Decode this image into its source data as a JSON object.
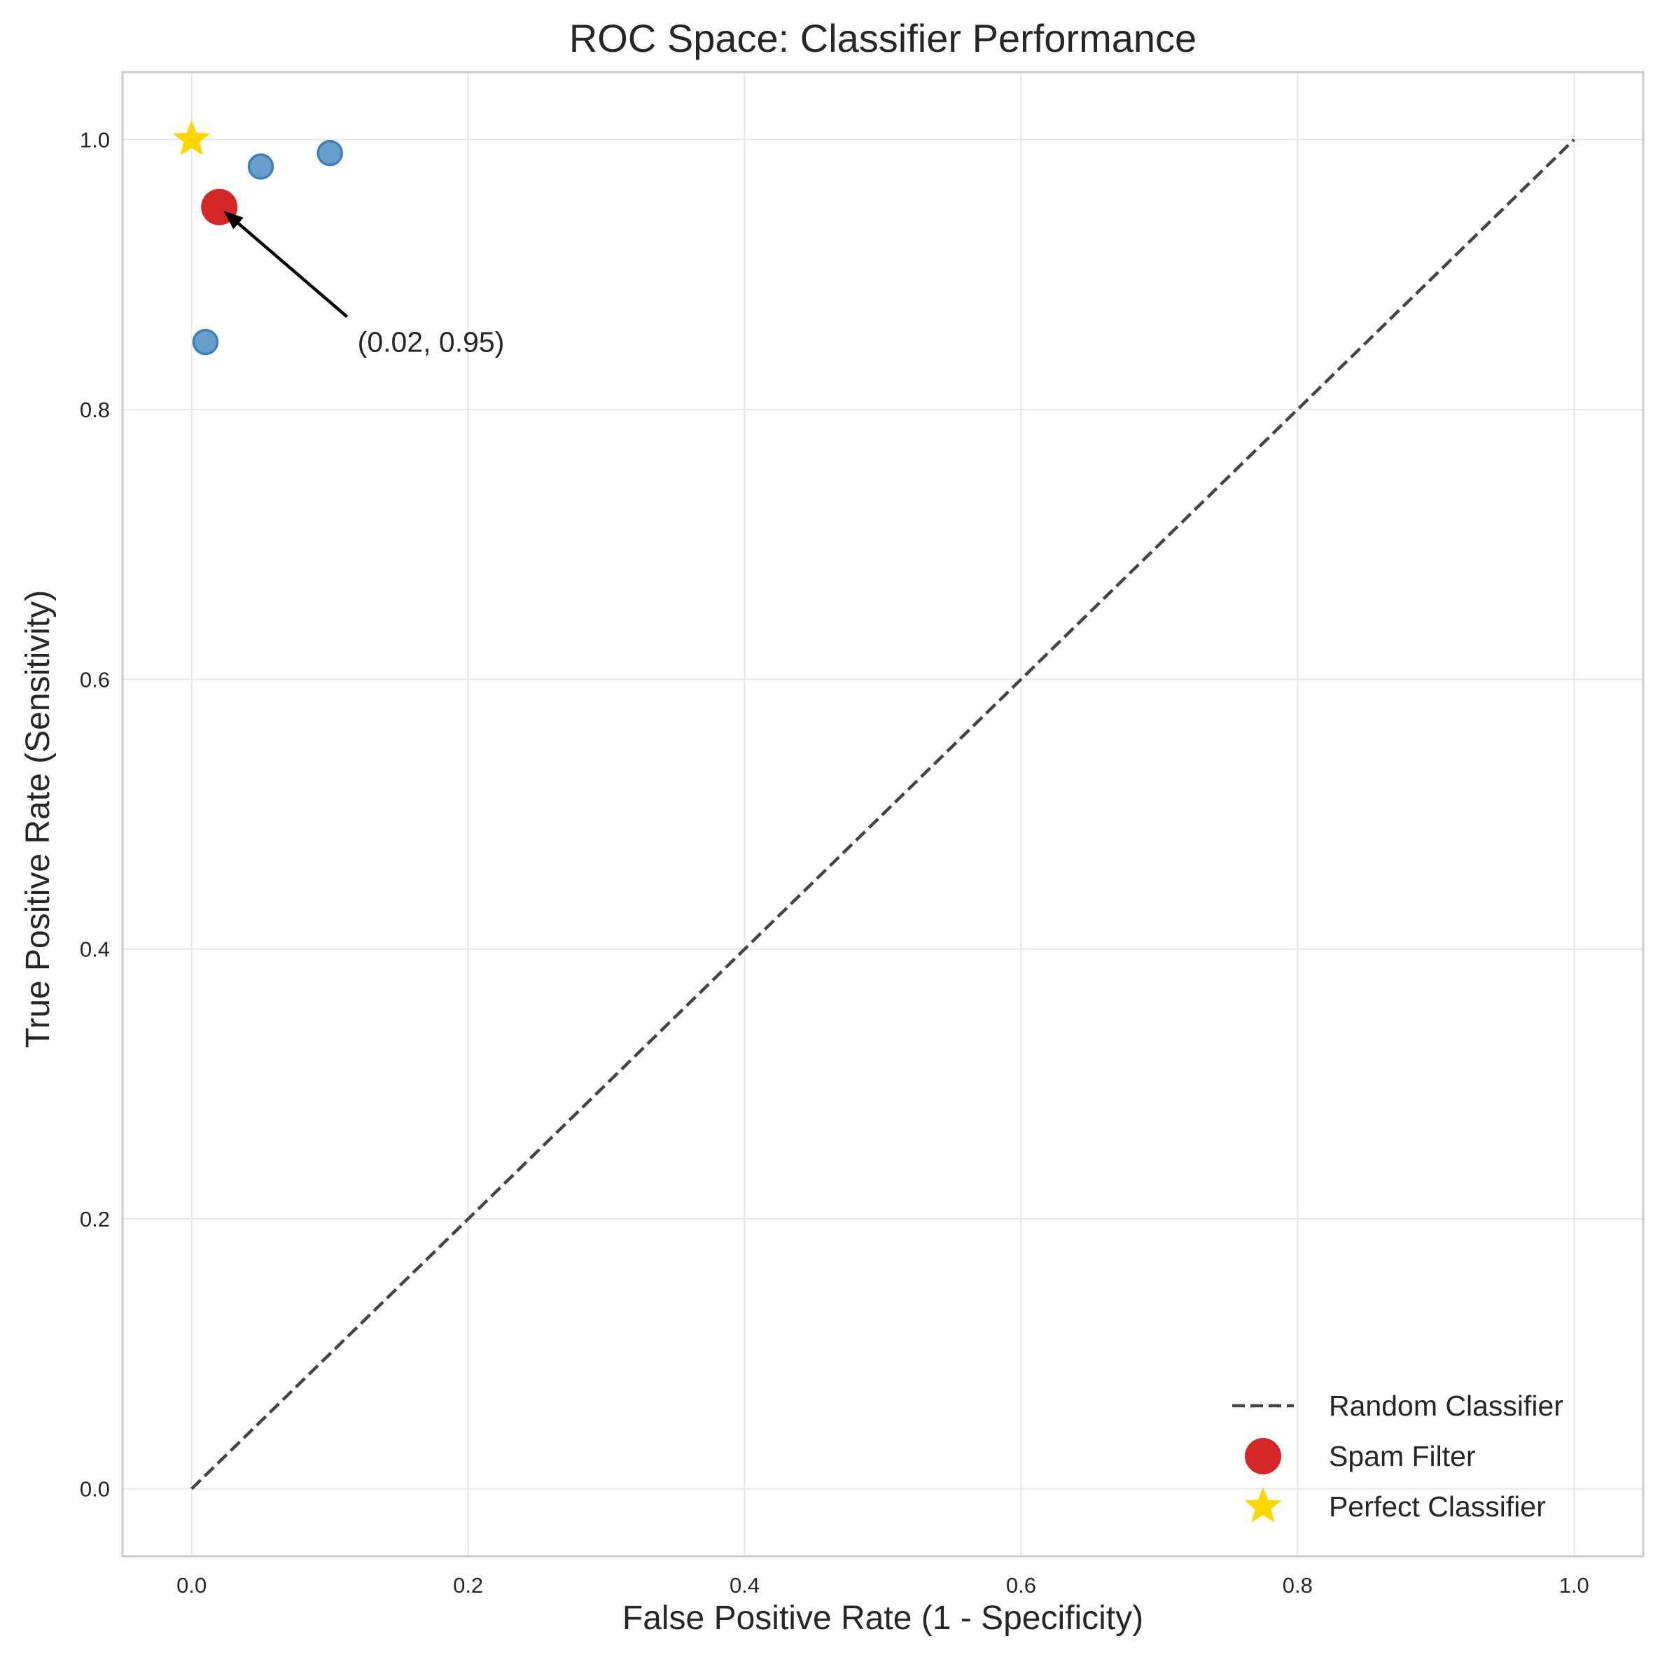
{
  "chart_data": {
    "type": "scatter",
    "title": "ROC Space: Classifier Performance",
    "xlabel": "False Positive Rate (1 - Specificity)",
    "ylabel": "True Positive Rate (Sensitivity)",
    "xlim": [
      -0.05,
      1.05
    ],
    "ylim": [
      -0.05,
      1.05
    ],
    "xticks": [
      0.0,
      0.2,
      0.4,
      0.6,
      0.8,
      1.0
    ],
    "yticks": [
      0.0,
      0.2,
      0.4,
      0.6,
      0.8,
      1.0
    ],
    "xtick_labels": [
      "0.0",
      "0.2",
      "0.4",
      "0.6",
      "0.8",
      "1.0"
    ],
    "ytick_labels": [
      "0.0",
      "0.2",
      "0.4",
      "0.6",
      "0.8",
      "1.0"
    ],
    "grid": true,
    "legend_position": "lower-right",
    "series": [
      {
        "name": "Random Classifier",
        "kind": "dashed-line",
        "color": "#444444",
        "x": [
          0.0,
          1.0
        ],
        "y": [
          0.0,
          1.0
        ]
      },
      {
        "name": "",
        "kind": "scatter",
        "color": "#5a96c8",
        "edge_color": "#3d7fb8",
        "x": [
          0.05,
          0.1,
          0.01
        ],
        "y": [
          0.98,
          0.99,
          0.85
        ]
      },
      {
        "name": "Spam Filter",
        "kind": "scatter",
        "color": "#d62728",
        "x": [
          0.02
        ],
        "y": [
          0.95
        ]
      },
      {
        "name": "Perfect Classifier",
        "kind": "star",
        "color": "#ffd700",
        "x": [
          0.0
        ],
        "y": [
          1.0
        ]
      }
    ],
    "annotations": [
      {
        "text": "(0.02, 0.95)",
        "point": [
          0.02,
          0.95
        ],
        "text_position": [
          0.12,
          0.85
        ]
      }
    ],
    "legend": [
      "Random Classifier",
      "Spam Filter",
      "Perfect Classifier"
    ]
  }
}
